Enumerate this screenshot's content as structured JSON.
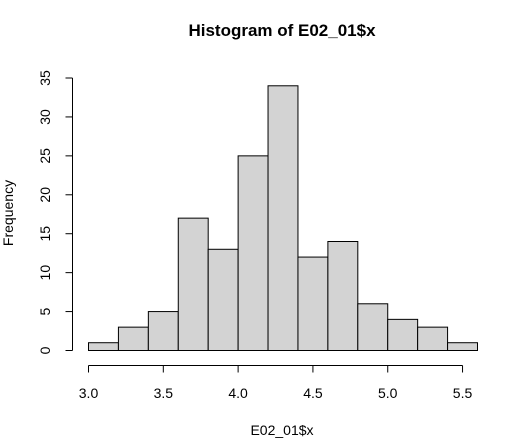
{
  "chart_data": {
    "type": "bar",
    "title": "Histogram of E02_01$x",
    "xlabel": "E02_01$x",
    "ylabel": "Frequency",
    "bin_edges": [
      3.0,
      3.2,
      3.4,
      3.6,
      3.8,
      4.0,
      4.2,
      4.4,
      4.6,
      4.8,
      5.0,
      5.2,
      5.4,
      5.6
    ],
    "values": [
      1,
      3,
      5,
      17,
      13,
      25,
      34,
      12,
      14,
      6,
      4,
      3,
      1
    ],
    "xticks": [
      "3.0",
      "3.5",
      "4.0",
      "4.5",
      "5.0",
      "5.5"
    ],
    "xtick_values": [
      3.0,
      3.5,
      4.0,
      4.5,
      5.0,
      5.5
    ],
    "yticks": [
      "0",
      "5",
      "10",
      "15",
      "20",
      "25",
      "30",
      "35"
    ],
    "ytick_values": [
      0,
      5,
      10,
      15,
      20,
      25,
      30,
      35
    ],
    "xlim": [
      3.0,
      5.6
    ],
    "ylim": [
      0,
      35
    ],
    "bar_fill": "#d3d3d3",
    "bar_stroke": "#000000",
    "grid": false
  }
}
